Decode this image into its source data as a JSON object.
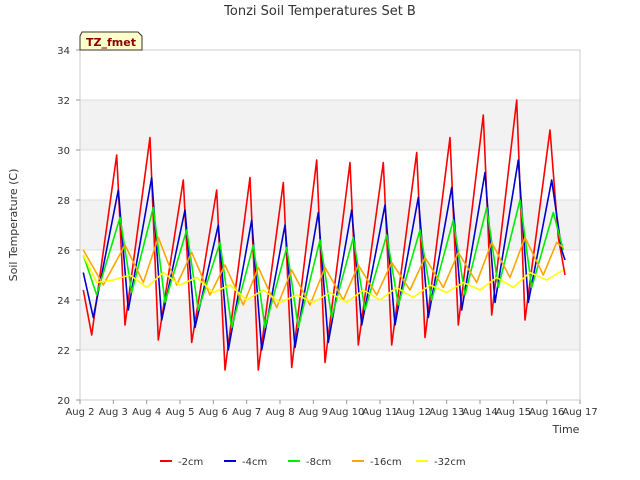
{
  "chart_data": {
    "type": "line",
    "title": "Tonzi Soil Temperatures Set B",
    "xlabel": "Time",
    "ylabel": "Soil Temperature (C)",
    "tag": "TZ_fmet",
    "xlim": [
      2,
      17
    ],
    "ylim": [
      20,
      34
    ],
    "x_ticks": [
      {
        "v": 2,
        "label": "Aug 2"
      },
      {
        "v": 3,
        "label": "Aug 3"
      },
      {
        "v": 4,
        "label": "Aug 4"
      },
      {
        "v": 5,
        "label": "Aug 5"
      },
      {
        "v": 6,
        "label": "Aug 6"
      },
      {
        "v": 7,
        "label": "Aug 7"
      },
      {
        "v": 8,
        "label": "Aug 8"
      },
      {
        "v": 9,
        "label": "Aug 9"
      },
      {
        "v": 10,
        "label": "Aug 10"
      },
      {
        "v": 11,
        "label": "Aug 11"
      },
      {
        "v": 12,
        "label": "Aug 12"
      },
      {
        "v": 13,
        "label": "Aug 13"
      },
      {
        "v": 14,
        "label": "Aug 14"
      },
      {
        "v": 15,
        "label": "Aug 15"
      },
      {
        "v": 16,
        "label": "Aug 16"
      },
      {
        "v": 17,
        "label": "Aug 17"
      }
    ],
    "y_ticks": [
      {
        "v": 20,
        "label": "20"
      },
      {
        "v": 22,
        "label": "22"
      },
      {
        "v": 24,
        "label": "24"
      },
      {
        "v": 26,
        "label": "26"
      },
      {
        "v": 28,
        "label": "28"
      },
      {
        "v": 30,
        "label": "30"
      },
      {
        "v": 32,
        "label": "32"
      },
      {
        "v": 34,
        "label": "34"
      }
    ],
    "grid": true,
    "legend_position": "bottom",
    "series": [
      {
        "name": "-2cm",
        "color": "#ff0000",
        "x": [
          2.1,
          2.35,
          3.1,
          3.35,
          4.1,
          4.35,
          5.1,
          5.35,
          6.1,
          6.35,
          7.1,
          7.35,
          8.1,
          8.35,
          9.1,
          9.35,
          10.1,
          10.35,
          11.1,
          11.35,
          12.1,
          12.35,
          13.1,
          13.35,
          14.1,
          14.35,
          15.1,
          15.35,
          16.1,
          16.35,
          16.55
        ],
        "y": [
          24.4,
          22.6,
          29.8,
          23.0,
          30.5,
          22.4,
          28.8,
          22.3,
          28.4,
          21.2,
          28.9,
          21.2,
          28.7,
          21.3,
          29.6,
          21.5,
          29.5,
          22.2,
          29.5,
          22.2,
          29.9,
          22.5,
          30.5,
          23.0,
          31.4,
          23.4,
          32.0,
          23.2,
          30.8,
          26.5,
          25.0
        ]
      },
      {
        "name": "-4cm",
        "color": "#0000cc",
        "x": [
          2.1,
          2.4,
          3.15,
          3.45,
          4.15,
          4.45,
          5.15,
          5.45,
          6.15,
          6.45,
          7.15,
          7.45,
          8.15,
          8.45,
          9.15,
          9.45,
          10.15,
          10.45,
          11.15,
          11.45,
          12.15,
          12.45,
          13.15,
          13.45,
          14.15,
          14.45,
          15.15,
          15.45,
          16.15,
          16.45,
          16.55
        ],
        "y": [
          25.1,
          23.3,
          28.4,
          23.6,
          28.9,
          23.2,
          27.6,
          22.9,
          27.0,
          22.0,
          27.2,
          22.0,
          27.0,
          22.1,
          27.5,
          22.3,
          27.6,
          23.0,
          27.8,
          23.0,
          28.1,
          23.3,
          28.5,
          23.6,
          29.1,
          23.9,
          29.6,
          23.9,
          28.8,
          26.0,
          25.6
        ]
      },
      {
        "name": "-8cm",
        "color": "#00ee00",
        "x": [
          2.1,
          2.5,
          3.2,
          3.55,
          4.2,
          4.55,
          5.2,
          5.55,
          6.2,
          6.55,
          7.2,
          7.55,
          8.2,
          8.55,
          9.2,
          9.55,
          10.2,
          10.55,
          11.2,
          11.55,
          12.2,
          12.55,
          13.2,
          13.55,
          14.2,
          14.55,
          15.2,
          15.55,
          16.2,
          16.5
        ],
        "y": [
          25.8,
          24.2,
          27.3,
          24.3,
          27.7,
          23.9,
          26.8,
          23.6,
          26.3,
          22.9,
          26.2,
          22.9,
          26.1,
          22.9,
          26.4,
          23.3,
          26.5,
          23.6,
          26.6,
          23.8,
          26.8,
          24.0,
          27.2,
          24.2,
          27.7,
          24.5,
          28.0,
          24.5,
          27.5,
          26.0
        ]
      },
      {
        "name": "-16cm",
        "color": "#ffa500",
        "x": [
          2.1,
          2.7,
          3.35,
          3.9,
          4.35,
          4.9,
          5.35,
          5.9,
          6.35,
          6.9,
          7.35,
          7.9,
          8.35,
          8.9,
          9.35,
          9.9,
          10.35,
          10.9,
          11.35,
          11.9,
          12.35,
          12.9,
          13.35,
          13.9,
          14.35,
          14.9,
          15.35,
          15.9,
          16.3,
          16.5
        ],
        "y": [
          26.0,
          24.6,
          26.2,
          24.7,
          26.5,
          24.6,
          25.9,
          24.2,
          25.4,
          23.8,
          25.3,
          23.7,
          25.2,
          23.8,
          25.3,
          24.0,
          25.4,
          24.2,
          25.5,
          24.4,
          25.7,
          24.5,
          25.9,
          24.7,
          26.3,
          24.9,
          26.5,
          25.0,
          26.3,
          26.1
        ]
      },
      {
        "name": "-32cm",
        "color": "#ffff00",
        "x": [
          2.1,
          2.5,
          3.0,
          3.5,
          4.0,
          4.5,
          5.0,
          5.5,
          6.0,
          6.5,
          7.0,
          7.5,
          8.0,
          8.5,
          9.0,
          9.5,
          10.0,
          10.5,
          11.0,
          11.5,
          12.0,
          12.5,
          13.0,
          13.5,
          14.0,
          14.5,
          15.0,
          15.5,
          16.0,
          16.5
        ],
        "y": [
          25.8,
          24.7,
          24.8,
          25.0,
          24.5,
          25.1,
          24.6,
          24.9,
          24.3,
          24.6,
          24.0,
          24.4,
          23.9,
          24.2,
          23.9,
          24.3,
          23.9,
          24.4,
          24.0,
          24.5,
          24.1,
          24.6,
          24.3,
          24.7,
          24.4,
          24.9,
          24.5,
          25.1,
          24.8,
          25.2
        ]
      }
    ]
  }
}
